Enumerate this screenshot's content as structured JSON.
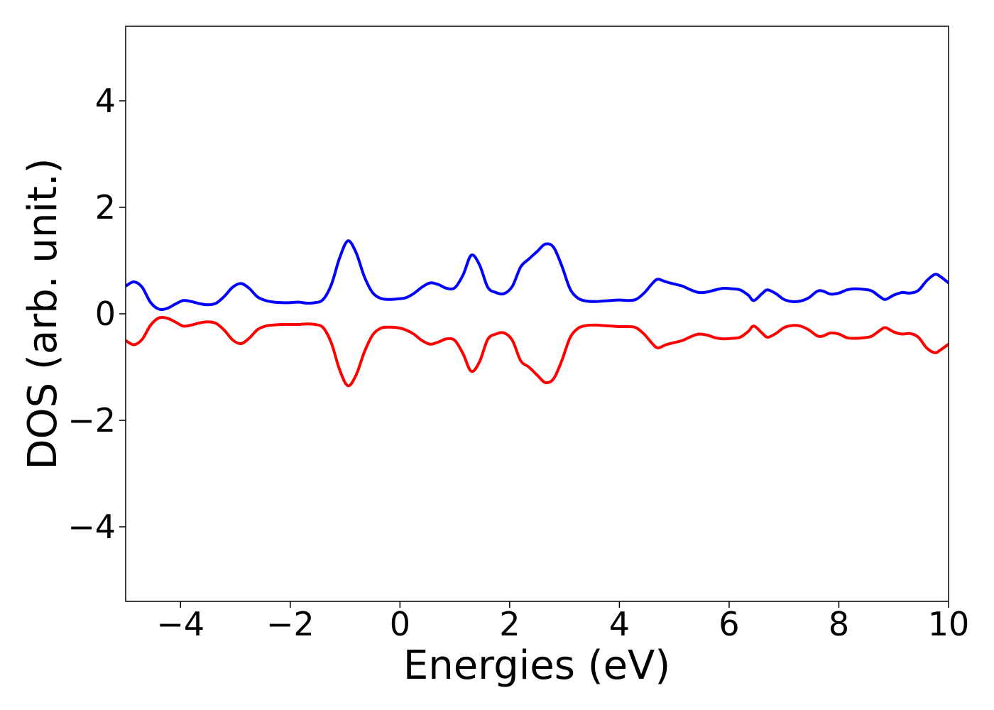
{
  "chart_data": {
    "type": "line",
    "title": "",
    "xlabel": "Energies (eV)",
    "ylabel": "DOS (arb. unit.)",
    "xlim": [
      -5,
      10
    ],
    "ylim": [
      -5.4,
      5.4
    ],
    "grid": false,
    "legend": "none",
    "x_ticks": [
      {
        "value": -4,
        "label": "−4"
      },
      {
        "value": -2,
        "label": "−2"
      },
      {
        "value": 0,
        "label": "0"
      },
      {
        "value": 2,
        "label": "2"
      },
      {
        "value": 4,
        "label": "4"
      },
      {
        "value": 6,
        "label": "6"
      },
      {
        "value": 8,
        "label": "8"
      },
      {
        "value": 10,
        "label": "10"
      }
    ],
    "y_ticks": [
      {
        "value": -4,
        "label": "−4"
      },
      {
        "value": -2,
        "label": "−2"
      },
      {
        "value": 0,
        "label": "0"
      },
      {
        "value": 2,
        "label": "2"
      },
      {
        "value": 4,
        "label": "4"
      }
    ],
    "series": [
      {
        "color": "#0000ff",
        "x": [
          -5.0,
          -4.85,
          -4.7,
          -4.55,
          -4.4,
          -4.25,
          -4.1,
          -3.95,
          -3.8,
          -3.65,
          -3.5,
          -3.35,
          -3.2,
          -3.05,
          -2.9,
          -2.75,
          -2.6,
          -2.45,
          -2.3,
          -2.15,
          -2.0,
          -1.85,
          -1.7,
          -1.55,
          -1.4,
          -1.25,
          -1.1,
          -0.95,
          -0.8,
          -0.65,
          -0.5,
          -0.35,
          -0.2,
          -0.05,
          0.1,
          0.25,
          0.4,
          0.55,
          0.7,
          0.85,
          1.0,
          1.15,
          1.3,
          1.45,
          1.6,
          1.75,
          1.9,
          2.05,
          2.2,
          2.35,
          2.5,
          2.65,
          2.8,
          2.95,
          3.1,
          3.25,
          3.4,
          3.55,
          3.7,
          3.85,
          4.0,
          4.15,
          4.3,
          4.45,
          4.6,
          4.7,
          4.85,
          5.0,
          5.15,
          5.3,
          5.45,
          5.6,
          5.75,
          5.9,
          6.05,
          6.2,
          6.35,
          6.45,
          6.6,
          6.7,
          6.85,
          7.0,
          7.15,
          7.3,
          7.45,
          7.6,
          7.7,
          7.85,
          8.0,
          8.15,
          8.3,
          8.45,
          8.6,
          8.75,
          8.85,
          9.0,
          9.15,
          9.3,
          9.45,
          9.6,
          9.75,
          9.85,
          10.0
        ],
        "y": [
          0.52,
          0.6,
          0.5,
          0.22,
          0.09,
          0.1,
          0.18,
          0.25,
          0.23,
          0.19,
          0.17,
          0.2,
          0.33,
          0.5,
          0.57,
          0.48,
          0.32,
          0.25,
          0.22,
          0.21,
          0.21,
          0.22,
          0.2,
          0.21,
          0.27,
          0.55,
          1.05,
          1.37,
          1.15,
          0.7,
          0.4,
          0.29,
          0.27,
          0.28,
          0.3,
          0.38,
          0.5,
          0.58,
          0.55,
          0.48,
          0.49,
          0.73,
          1.1,
          0.92,
          0.5,
          0.4,
          0.38,
          0.52,
          0.88,
          1.03,
          1.17,
          1.31,
          1.25,
          0.9,
          0.47,
          0.29,
          0.24,
          0.23,
          0.24,
          0.25,
          0.26,
          0.25,
          0.27,
          0.39,
          0.57,
          0.65,
          0.6,
          0.56,
          0.52,
          0.45,
          0.4,
          0.41,
          0.45,
          0.48,
          0.47,
          0.45,
          0.35,
          0.25,
          0.38,
          0.45,
          0.38,
          0.27,
          0.23,
          0.24,
          0.3,
          0.42,
          0.43,
          0.37,
          0.39,
          0.45,
          0.47,
          0.46,
          0.43,
          0.32,
          0.27,
          0.35,
          0.4,
          0.39,
          0.44,
          0.62,
          0.74,
          0.7,
          0.58
        ]
      },
      {
        "color": "#ff0000",
        "x": [
          -5.0,
          -4.85,
          -4.7,
          -4.55,
          -4.4,
          -4.25,
          -4.1,
          -3.95,
          -3.8,
          -3.65,
          -3.5,
          -3.35,
          -3.2,
          -3.05,
          -2.9,
          -2.75,
          -2.6,
          -2.45,
          -2.3,
          -2.15,
          -2.0,
          -1.85,
          -1.7,
          -1.55,
          -1.4,
          -1.25,
          -1.1,
          -0.95,
          -0.8,
          -0.65,
          -0.5,
          -0.35,
          -0.2,
          -0.05,
          0.1,
          0.25,
          0.4,
          0.55,
          0.7,
          0.85,
          1.0,
          1.15,
          1.3,
          1.45,
          1.6,
          1.75,
          1.9,
          2.05,
          2.2,
          2.35,
          2.5,
          2.65,
          2.8,
          2.95,
          3.1,
          3.25,
          3.4,
          3.55,
          3.7,
          3.85,
          4.0,
          4.15,
          4.3,
          4.45,
          4.6,
          4.7,
          4.85,
          5.0,
          5.15,
          5.3,
          5.45,
          5.6,
          5.75,
          5.9,
          6.05,
          6.2,
          6.35,
          6.45,
          6.6,
          6.7,
          6.85,
          7.0,
          7.15,
          7.3,
          7.45,
          7.6,
          7.7,
          7.85,
          8.0,
          8.15,
          8.3,
          8.45,
          8.6,
          8.75,
          8.85,
          9.0,
          9.15,
          9.3,
          9.45,
          9.6,
          9.75,
          9.85,
          10.0
        ],
        "y": [
          -0.5,
          -0.58,
          -0.48,
          -0.22,
          -0.08,
          -0.08,
          -0.15,
          -0.23,
          -0.21,
          -0.17,
          -0.15,
          -0.18,
          -0.31,
          -0.49,
          -0.56,
          -0.46,
          -0.3,
          -0.23,
          -0.21,
          -0.2,
          -0.2,
          -0.2,
          -0.19,
          -0.2,
          -0.26,
          -0.55,
          -1.05,
          -1.35,
          -1.15,
          -0.72,
          -0.4,
          -0.27,
          -0.25,
          -0.26,
          -0.3,
          -0.38,
          -0.5,
          -0.57,
          -0.53,
          -0.47,
          -0.5,
          -0.75,
          -1.08,
          -0.9,
          -0.48,
          -0.38,
          -0.36,
          -0.5,
          -0.88,
          -1.0,
          -1.15,
          -1.29,
          -1.22,
          -0.88,
          -0.45,
          -0.27,
          -0.22,
          -0.21,
          -0.22,
          -0.23,
          -0.24,
          -0.24,
          -0.26,
          -0.38,
          -0.56,
          -0.64,
          -0.58,
          -0.54,
          -0.5,
          -0.43,
          -0.38,
          -0.4,
          -0.45,
          -0.47,
          -0.46,
          -0.44,
          -0.33,
          -0.23,
          -0.36,
          -0.44,
          -0.37,
          -0.26,
          -0.22,
          -0.23,
          -0.3,
          -0.41,
          -0.42,
          -0.36,
          -0.38,
          -0.45,
          -0.46,
          -0.45,
          -0.42,
          -0.31,
          -0.26,
          -0.34,
          -0.38,
          -0.37,
          -0.44,
          -0.64,
          -0.73,
          -0.68,
          -0.57
        ]
      }
    ]
  }
}
